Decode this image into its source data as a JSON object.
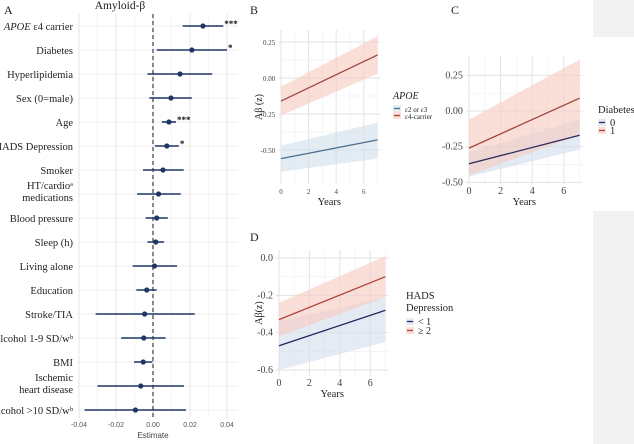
{
  "chart_data": [
    {
      "panel": "A",
      "type": "forest",
      "title": "Amyloid-β",
      "xlabel": "Estimate",
      "xticks": [
        -0.04,
        -0.02,
        0.0,
        0.02,
        0.04
      ],
      "xtick_labels": [
        "-0.04",
        "-0.02",
        "0.00",
        "0.02",
        "0.04"
      ],
      "xlim": [
        -0.045,
        0.045
      ],
      "reference_line": 0,
      "grid": true,
      "point_color": "#1f3566",
      "rows": [
        {
          "label": "APOE ε4 carrier",
          "estimate": 0.027,
          "low": 0.016,
          "high": 0.038,
          "sig": "***"
        },
        {
          "label": "Diabetes",
          "estimate": 0.021,
          "low": 0.002,
          "high": 0.04,
          "sig": "*"
        },
        {
          "label": "Hyperlipidemia",
          "estimate": 0.0146,
          "low": -0.003,
          "high": 0.032,
          "sig": ""
        },
        {
          "label": "Sex (0=male)",
          "estimate": 0.0097,
          "low": -0.002,
          "high": 0.021,
          "sig": ""
        },
        {
          "label": "Age",
          "estimate": 0.0086,
          "low": 0.0048,
          "high": 0.0124,
          "sig": "***"
        },
        {
          "label": "HADS Depression",
          "estimate": 0.0075,
          "low": 0.001,
          "high": 0.014,
          "sig": "*"
        },
        {
          "label": "Smoker",
          "estimate": 0.0054,
          "low": -0.0054,
          "high": 0.0166,
          "sig": ""
        },
        {
          "label": "HT/cardioᵃ\nmedications",
          "estimate": 0.003,
          "low": -0.0086,
          "high": 0.015,
          "sig": ""
        },
        {
          "label": "Blood pressure",
          "estimate": 0.002,
          "low": -0.004,
          "high": 0.008,
          "sig": ""
        },
        {
          "label": "Sleep (h)",
          "estimate": 0.0015,
          "low": -0.003,
          "high": 0.006,
          "sig": ""
        },
        {
          "label": "Living alone",
          "estimate": 0.0008,
          "low": -0.011,
          "high": 0.013,
          "sig": ""
        },
        {
          "label": "Education",
          "estimate": -0.0034,
          "low": -0.009,
          "high": 0.002,
          "sig": ""
        },
        {
          "label": "Stroke/TIA",
          "estimate": -0.0045,
          "low": -0.031,
          "high": 0.0226,
          "sig": ""
        },
        {
          "label": "Alcohol 1-9 SD/wᵇ",
          "estimate": -0.005,
          "low": -0.0172,
          "high": 0.0068,
          "sig": ""
        },
        {
          "label": "BMI",
          "estimate": -0.0053,
          "low": -0.0103,
          "high": -0.0003,
          "sig": ""
        },
        {
          "label": "Ischemic\nheart disease",
          "estimate": -0.0066,
          "low": -0.03,
          "high": 0.0167,
          "sig": ""
        },
        {
          "label": "Alcohol >10 SD/wᵇ",
          "estimate": -0.0095,
          "low": -0.037,
          "high": 0.0178,
          "sig": ""
        }
      ]
    },
    {
      "panel": "B",
      "type": "line",
      "xlabel": "Years",
      "ylabel": "Aβ (z)",
      "xlim": [
        0,
        7
      ],
      "xticks": [
        0,
        2,
        4,
        6
      ],
      "ylim": [
        -0.67,
        0.32
      ],
      "yticks": [
        -0.5,
        -0.25,
        0.0,
        0.25
      ],
      "ytick_labels": [
        "-0.50",
        "-0.25",
        "0.00",
        "0.25"
      ],
      "legend_title": "APOE",
      "legend_position": "right",
      "series": [
        {
          "name": "ε2 or ε3",
          "color": "#4a6f8f",
          "fill": "#cfdfea",
          "x": [
            0,
            7
          ],
          "y": [
            -0.56,
            -0.43
          ],
          "low": [
            -0.65,
            -0.56
          ],
          "high": [
            -0.47,
            -0.31
          ]
        },
        {
          "name": "ε4-carrier",
          "color": "#a0453a",
          "fill": "#f7c9c0",
          "x": [
            0,
            7
          ],
          "y": [
            -0.16,
            0.16
          ],
          "low": [
            -0.26,
            0.03
          ],
          "high": [
            -0.06,
            0.29
          ]
        }
      ]
    },
    {
      "panel": "C",
      "type": "line",
      "xlabel": "Years",
      "ylabel": "",
      "xlim": [
        0,
        7
      ],
      "xticks": [
        0,
        2,
        4,
        6
      ],
      "ylim": [
        -0.5,
        0.38
      ],
      "yticks": [
        -0.5,
        -0.25,
        0.0,
        0.25
      ],
      "ytick_labels": [
        "-0.50",
        "-0.25",
        "0.00",
        "0.25"
      ],
      "legend_title": "Diabetes",
      "legend_position": "right",
      "series": [
        {
          "name": "0",
          "color": "#2b2a5e",
          "fill": "#cfdceb",
          "x": [
            0,
            7
          ],
          "y": [
            -0.37,
            -0.17
          ],
          "low": [
            -0.46,
            -0.27
          ],
          "high": [
            -0.29,
            -0.06
          ]
        },
        {
          "name": "1",
          "color": "#a0453a",
          "fill": "#f7c9c0",
          "x": [
            0,
            7
          ],
          "y": [
            -0.26,
            0.09
          ],
          "low": [
            -0.45,
            -0.17
          ],
          "high": [
            -0.06,
            0.36
          ]
        }
      ]
    },
    {
      "panel": "D",
      "type": "line",
      "xlabel": "Years",
      "ylabel": "Aβ(z)",
      "xlim": [
        0,
        7
      ],
      "xticks": [
        0,
        2,
        4,
        6
      ],
      "ylim": [
        -0.62,
        0.03
      ],
      "yticks": [
        -0.6,
        -0.4,
        -0.2,
        0.0
      ],
      "ytick_labels": [
        "-0.6",
        "-0.4",
        "-0.2",
        "0.0"
      ],
      "legend_title": "HADS\nDepression",
      "legend_position": "right",
      "series": [
        {
          "name": "< 1",
          "color": "#1f2a5e",
          "fill": "#d3deec",
          "x": [
            0,
            7
          ],
          "y": [
            -0.47,
            -0.28
          ],
          "low": [
            -0.6,
            -0.45
          ],
          "high": [
            -0.34,
            -0.21
          ]
        },
        {
          "name": "≥ 2",
          "color": "#b0463e",
          "fill": "#f7c9c0",
          "x": [
            0,
            7
          ],
          "y": [
            -0.33,
            -0.1
          ],
          "low": [
            -0.42,
            -0.21
          ],
          "high": [
            -0.24,
            0.01
          ]
        }
      ]
    }
  ],
  "panel_labels": [
    "A",
    "B",
    "C",
    "D"
  ]
}
